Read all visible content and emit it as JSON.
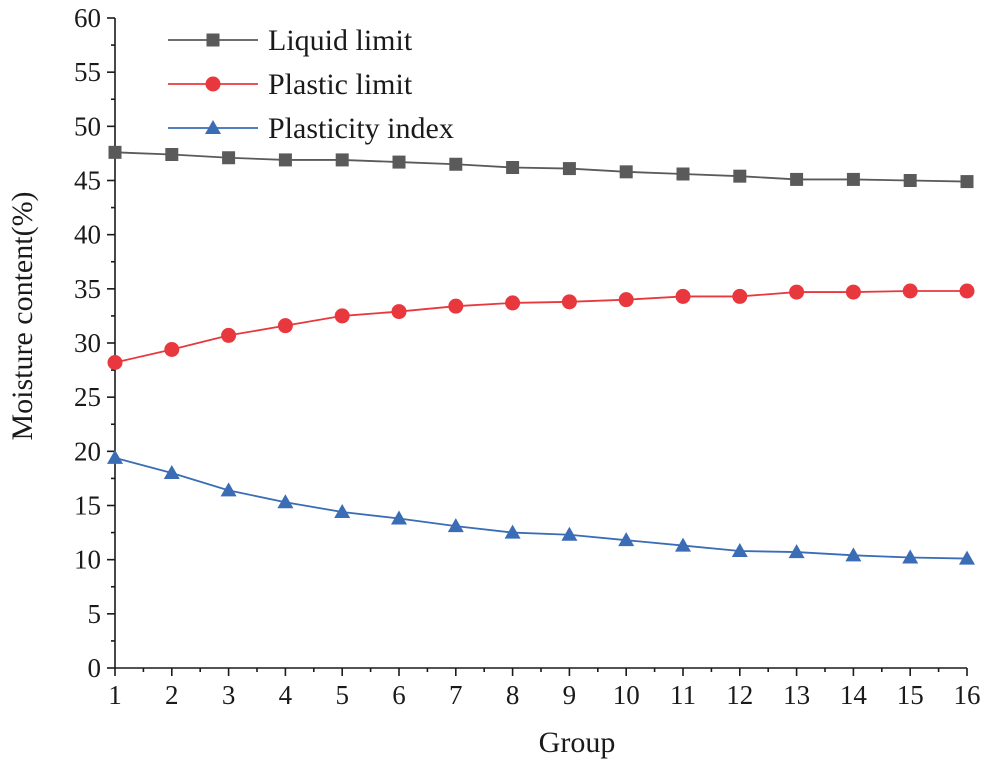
{
  "chart_data": {
    "type": "line",
    "xlabel": "Group",
    "ylabel": "Moisture content(%)",
    "x": [
      1,
      2,
      3,
      4,
      5,
      6,
      7,
      8,
      9,
      10,
      11,
      12,
      13,
      14,
      15,
      16
    ],
    "xlim": [
      1,
      16
    ],
    "ylim": [
      0,
      60
    ],
    "x_ticks": [
      1,
      2,
      3,
      4,
      5,
      6,
      7,
      8,
      9,
      10,
      11,
      12,
      13,
      14,
      15,
      16
    ],
    "y_ticks": [
      0,
      5,
      10,
      15,
      20,
      25,
      30,
      35,
      40,
      45,
      50,
      55,
      60
    ],
    "grid": false,
    "legend_position": "top-left",
    "series": [
      {
        "name": "Liquid limit",
        "marker": "square",
        "color": "#5a5a5a",
        "values": [
          47.6,
          47.4,
          47.1,
          46.9,
          46.9,
          46.7,
          46.5,
          46.2,
          46.1,
          45.8,
          45.6,
          45.4,
          45.1,
          45.1,
          45.0,
          44.9
        ]
      },
      {
        "name": "Plastic limit",
        "marker": "circle",
        "color": "#e8383d",
        "values": [
          28.2,
          29.4,
          30.7,
          31.6,
          32.5,
          32.9,
          33.4,
          33.7,
          33.8,
          34.0,
          34.3,
          34.3,
          34.7,
          34.7,
          34.8,
          34.8
        ]
      },
      {
        "name": "Plasticity index",
        "marker": "triangle",
        "color": "#3a6db5",
        "values": [
          19.4,
          18.0,
          16.4,
          15.3,
          14.4,
          13.8,
          13.1,
          12.5,
          12.3,
          11.8,
          11.3,
          10.8,
          10.7,
          10.4,
          10.2,
          10.1
        ]
      }
    ]
  }
}
